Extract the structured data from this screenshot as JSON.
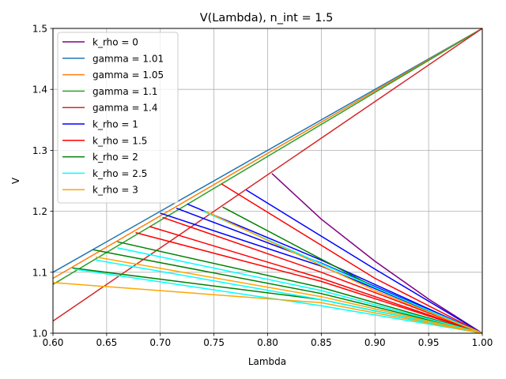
{
  "chart_data": {
    "type": "line",
    "title": "V(Lambda), n_int = 1.5",
    "xlabel": "Lambda",
    "ylabel": "V",
    "xlim": [
      0.6,
      1.0
    ],
    "ylim": [
      1.0,
      1.5
    ],
    "xticks": [
      "0.60",
      "0.65",
      "0.70",
      "0.75",
      "0.80",
      "0.85",
      "0.90",
      "0.95",
      "1.00"
    ],
    "yticks": [
      "1.0",
      "1.1",
      "1.2",
      "1.3",
      "1.4",
      "1.5"
    ],
    "grid": true,
    "legend_position": "top-left",
    "series": [
      {
        "name": "k_rho = 0",
        "color": "#800080",
        "curves": [
          {
            "x": [
              0.804,
              0.85,
              0.9,
              0.95,
              1.0
            ],
            "y": [
              1.262,
              1.187,
              1.118,
              1.056,
              1.0
            ]
          }
        ]
      },
      {
        "name": "gamma = 1.01",
        "color": "#1f77b4",
        "curves": [
          {
            "x": [
              0.6,
              1.0
            ],
            "y": [
              1.1,
              1.5
            ]
          }
        ]
      },
      {
        "name": "gamma = 1.05",
        "color": "#ff7f0e",
        "curves": [
          {
            "x": [
              0.6,
              1.0
            ],
            "y": [
              1.09,
              1.5
            ]
          }
        ]
      },
      {
        "name": "gamma = 1.1",
        "color": "#2ca02c",
        "curves": [
          {
            "x": [
              0.6,
              1.0
            ],
            "y": [
              1.08,
              1.5
            ]
          }
        ]
      },
      {
        "name": "gamma = 1.4",
        "color": "#d62728",
        "curves": [
          {
            "x": [
              0.6,
              1.0
            ],
            "y": [
              1.02,
              1.5
            ]
          }
        ]
      },
      {
        "name": "k_rho = 1",
        "color": "#0000ff",
        "curves": [
          {
            "x": [
              0.78,
              0.9,
              1.0
            ],
            "y": [
              1.235,
              1.105,
              1.0
            ]
          },
          {
            "x": [
              0.725,
              0.85,
              1.0
            ],
            "y": [
              1.212,
              1.12,
              1.0
            ]
          },
          {
            "x": [
              0.715,
              0.85,
              1.0
            ],
            "y": [
              1.205,
              1.115,
              1.0
            ]
          },
          {
            "x": [
              0.7,
              0.85,
              1.0
            ],
            "y": [
              1.197,
              1.11,
              1.0
            ]
          }
        ]
      },
      {
        "name": "k_rho = 1.5",
        "color": "#ff0000",
        "curves": [
          {
            "x": [
              0.757,
              0.9,
              1.0
            ],
            "y": [
              1.245,
              1.09,
              1.0
            ]
          },
          {
            "x": [
              0.702,
              0.85,
              1.0
            ],
            "y": [
              1.19,
              1.1,
              1.0
            ]
          },
          {
            "x": [
              0.69,
              0.85,
              1.0
            ],
            "y": [
              1.175,
              1.09,
              1.0
            ]
          },
          {
            "x": [
              0.677,
              0.85,
              1.0
            ],
            "y": [
              1.165,
              1.085,
              1.0
            ]
          }
        ]
      },
      {
        "name": "k_rho = 2",
        "color": "#008000",
        "curves": [
          {
            "x": [
              0.758,
              0.9,
              1.0
            ],
            "y": [
              1.207,
              1.075,
              1.0
            ]
          },
          {
            "x": [
              0.66,
              0.85,
              1.0
            ],
            "y": [
              1.15,
              1.075,
              1.0
            ]
          },
          {
            "x": [
              0.637,
              0.85,
              1.0
            ],
            "y": [
              1.137,
              1.065,
              1.0
            ]
          },
          {
            "x": [
              0.618,
              0.85,
              1.0
            ],
            "y": [
              1.107,
              1.055,
              1.0
            ]
          }
        ]
      },
      {
        "name": "k_rho = 2.5",
        "color": "#00ffff",
        "curves": [
          {
            "x": [
              0.74,
              0.9,
              1.0
            ],
            "y": [
              1.2,
              1.075,
              1.0
            ]
          },
          {
            "x": [
              0.66,
              0.85,
              1.0
            ],
            "y": [
              1.14,
              1.07,
              1.0
            ]
          },
          {
            "x": [
              0.64,
              0.85,
              1.0
            ],
            "y": [
              1.12,
              1.055,
              1.0
            ]
          },
          {
            "x": [
              0.62,
              0.85,
              1.0
            ],
            "y": [
              1.105,
              1.045,
              1.0
            ]
          }
        ]
      },
      {
        "name": "k_rho = 3",
        "color": "#ffa500",
        "curves": [
          {
            "x": [
              0.742,
              0.9,
              1.0
            ],
            "y": [
              1.2,
              1.07,
              1.0
            ]
          },
          {
            "x": [
              0.64,
              0.85,
              1.0
            ],
            "y": [
              1.125,
              1.06,
              1.0
            ]
          },
          {
            "x": [
              0.6,
              0.85,
              1.0
            ],
            "y": [
              1.083,
              1.05,
              1.0
            ]
          }
        ]
      }
    ]
  }
}
